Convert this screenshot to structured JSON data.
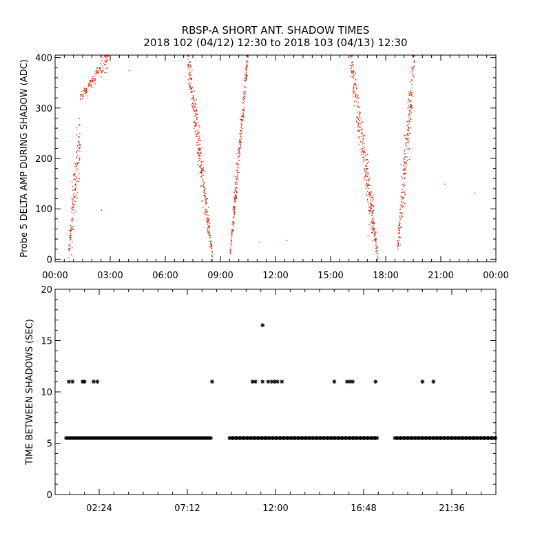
{
  "title_line1": "RBSP-A SHORT ANT. SHADOW TIMES",
  "title_line2": "2018 102 (04/12) 12:30 to 2018 103 (04/13) 12:30",
  "colors": {
    "amp_points": "#dd2200",
    "shadow_points": "#000000",
    "axes": "#000000",
    "background": "#ffffff"
  },
  "chart_data": [
    {
      "type": "scatter",
      "ylabel": "Probe 5 DELTA AMP DURING SHADOW (ADC)",
      "xlim_hours": [
        0,
        24
      ],
      "ylim": [
        -5,
        405
      ],
      "x_tick_labels": [
        "00:00",
        "03:00",
        "06:00",
        "09:00",
        "12:00",
        "15:00",
        "18:00",
        "21:00",
        "00:00"
      ],
      "x_tick_hours": [
        0,
        3,
        6,
        9,
        12,
        15,
        18,
        21,
        24
      ],
      "y_tick_labels": [
        "0",
        "100",
        "200",
        "300",
        "400"
      ],
      "y_ticks": [
        0,
        100,
        200,
        300,
        400
      ],
      "grid": false,
      "marker": "dot",
      "color": "#dd2200",
      "bands": [
        {
          "t_start": 0.72,
          "t_end": 1.35,
          "v_start": 15,
          "v_end": 250,
          "sigma": 70,
          "n": 150
        },
        {
          "t_start": 1.35,
          "t_end": 2.9,
          "v_start": 320,
          "v_end": 405,
          "sigma": 30,
          "n": 130
        },
        {
          "t_start": 7.2,
          "t_end": 8.55,
          "v_start": 400,
          "v_end": 5,
          "sigma": 45,
          "n": 320
        },
        {
          "t_start": 9.5,
          "t_end": 10.45,
          "v_start": 10,
          "v_end": 400,
          "sigma": 35,
          "n": 260
        },
        {
          "t_start": 16.05,
          "t_end": 17.55,
          "v_start": 400,
          "v_end": 5,
          "sigma": 45,
          "n": 340
        },
        {
          "t_start": 18.6,
          "t_end": 19.55,
          "v_start": 15,
          "v_end": 400,
          "sigma": 55,
          "n": 240
        }
      ],
      "isolated_points": [
        {
          "x": 4.0,
          "y": 375
        },
        {
          "x": 2.5,
          "y": 98
        },
        {
          "x": 11.1,
          "y": 35
        },
        {
          "x": 12.6,
          "y": 38
        },
        {
          "x": 21.2,
          "y": 150
        },
        {
          "x": 22.8,
          "y": 132
        }
      ]
    },
    {
      "type": "scatter",
      "ylabel": "TIME BETWEEN SHADOWS (SEC)",
      "xlim_hours": [
        0,
        24
      ],
      "ylim": [
        0,
        20
      ],
      "x_tick_labels": [
        "02:24",
        "07:12",
        "12:00",
        "16:48",
        "21:36"
      ],
      "x_tick_hours": [
        2.4,
        7.2,
        12.0,
        16.8,
        21.6
      ],
      "y_tick_labels": [
        "0",
        "5",
        "10",
        "15",
        "20"
      ],
      "y_ticks": [
        0,
        5,
        10,
        15,
        20
      ],
      "grid": false,
      "marker": "asterisk",
      "color": "#000000",
      "baseline_value": 5.5,
      "baseline_segments": [
        [
          0.6,
          8.5
        ],
        [
          9.5,
          17.55
        ],
        [
          18.5,
          24.0
        ]
      ],
      "outliers": [
        {
          "x": 0.75,
          "y": 11.0
        },
        {
          "x": 0.95,
          "y": 11.0
        },
        {
          "x": 1.5,
          "y": 11.0
        },
        {
          "x": 1.6,
          "y": 11.0
        },
        {
          "x": 2.1,
          "y": 11.0
        },
        {
          "x": 2.3,
          "y": 11.0
        },
        {
          "x": 8.55,
          "y": 11.0
        },
        {
          "x": 10.75,
          "y": 11.0
        },
        {
          "x": 10.9,
          "y": 11.0
        },
        {
          "x": 11.3,
          "y": 16.5
        },
        {
          "x": 11.3,
          "y": 11.0
        },
        {
          "x": 11.6,
          "y": 11.0
        },
        {
          "x": 11.8,
          "y": 11.0
        },
        {
          "x": 11.95,
          "y": 11.0
        },
        {
          "x": 12.1,
          "y": 11.0
        },
        {
          "x": 12.35,
          "y": 11.0
        },
        {
          "x": 15.2,
          "y": 11.0
        },
        {
          "x": 15.9,
          "y": 11.0
        },
        {
          "x": 16.05,
          "y": 11.0
        },
        {
          "x": 16.2,
          "y": 11.0
        },
        {
          "x": 17.45,
          "y": 11.0
        },
        {
          "x": 20.0,
          "y": 11.0
        },
        {
          "x": 20.6,
          "y": 11.0
        }
      ]
    }
  ]
}
